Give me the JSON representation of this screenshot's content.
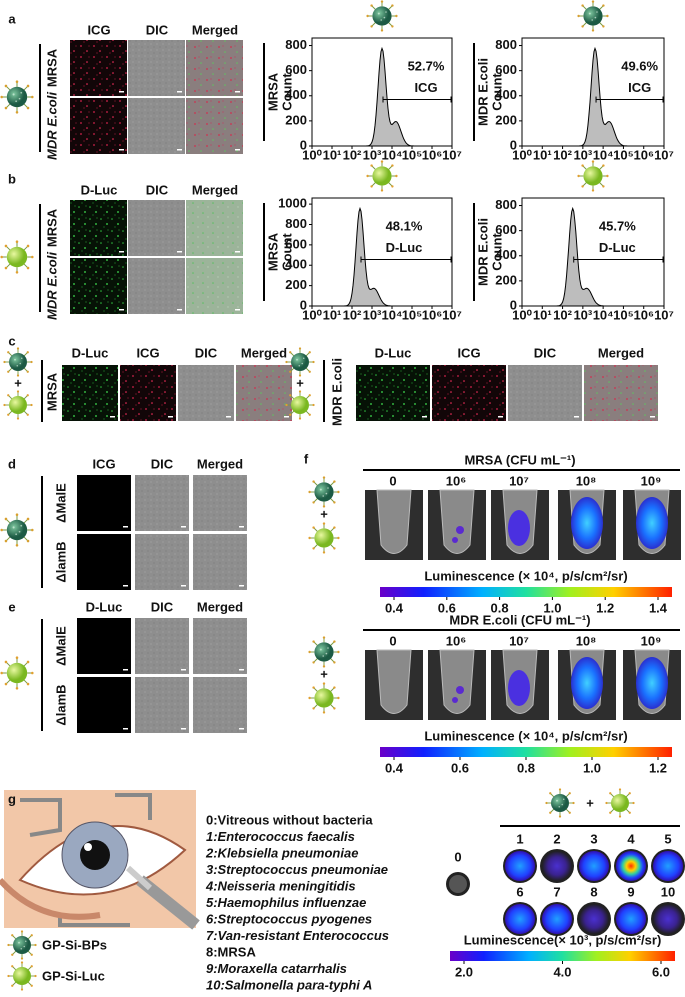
{
  "figure": {
    "a": {
      "letter": "a",
      "columns": [
        "ICG",
        "DIC",
        "Merged"
      ],
      "rows": [
        "MRSA",
        "MDR E.coli"
      ],
      "histograms": [
        {
          "label": "MRSA",
          "axis_label": "Count",
          "percent": "52.7%",
          "gate": "ICG",
          "yticks": [
            "0",
            "200",
            "400",
            "600",
            "800"
          ]
        },
        {
          "label": "MDR E.coli",
          "axis_label": "Count",
          "percent": "49.6%",
          "gate": "ICG",
          "yticks": [
            "0",
            "200",
            "400",
            "600",
            "800"
          ]
        }
      ],
      "xticks": [
        "10⁰",
        "10¹",
        "10²",
        "10³",
        "10⁴",
        "10⁵",
        "10⁶",
        "10⁷"
      ]
    },
    "b": {
      "letter": "b",
      "columns": [
        "D-Luc",
        "DIC",
        "Merged"
      ],
      "rows": [
        "MRSA",
        "MDR E.coli"
      ],
      "histograms": [
        {
          "label": "MRSA",
          "axis_label": "Count",
          "percent": "48.1%",
          "gate": "D-Luc",
          "yticks": [
            "0",
            "200",
            "400",
            "600",
            "800",
            "1000"
          ]
        },
        {
          "label": "MDR E.coli",
          "axis_label": "Count",
          "percent": "45.7%",
          "gate": "D-Luc",
          "yticks": [
            "0",
            "200",
            "400",
            "600",
            "800"
          ]
        }
      ],
      "xticks": [
        "10⁰",
        "10¹",
        "10²",
        "10³",
        "10⁴",
        "10⁵",
        "10⁶",
        "10⁷"
      ]
    },
    "c": {
      "letter": "c",
      "plus": "+",
      "groups": [
        {
          "row": "MRSA",
          "columns": [
            "D-Luc",
            "ICG",
            "DIC",
            "Merged"
          ]
        },
        {
          "row": "MDR E.coli",
          "columns": [
            "D-Luc",
            "ICG",
            "DIC",
            "Merged"
          ]
        }
      ]
    },
    "d": {
      "letter": "d",
      "columns": [
        "ICG",
        "DIC",
        "Merged"
      ],
      "rows": [
        "ΔMalE",
        "ΔlamB"
      ]
    },
    "e": {
      "letter": "e",
      "columns": [
        "D-Luc",
        "DIC",
        "Merged"
      ],
      "rows": [
        "ΔMalE",
        "ΔlamB"
      ]
    },
    "f": {
      "letter": "f",
      "plus": "+",
      "blocks": [
        {
          "title": "MRSA  (CFU mL⁻¹)",
          "concentrations": [
            "0",
            "10⁶",
            "10⁷",
            "10⁸",
            "10⁹"
          ],
          "colorbar_label": "Luminescence (× 10⁴, p/s/cm²/sr)",
          "colorbar_ticks": [
            "0.4",
            "0.6",
            "0.8",
            "1.0",
            "1.2",
            "1.4"
          ]
        },
        {
          "title": "MDR E.coli  (CFU mL⁻¹)",
          "concentrations": [
            "0",
            "10⁶",
            "10⁷",
            "10⁸",
            "10⁹"
          ],
          "colorbar_label": "Luminescence (× 10⁴, p/s/cm²/sr)",
          "colorbar_ticks": [
            "0.4",
            "0.6",
            "0.8",
            "1.0",
            "1.2"
          ]
        }
      ]
    },
    "g": {
      "letter": "g",
      "plus": "+",
      "bacteria": [
        "0:Vitreous without bacteria",
        "1:Enterococcus faecalis",
        "2:Klebsiella pneumoniae",
        "3:Streptococcus pneumoniae",
        "4:Neisseria meningitidis",
        "5:Haemophilus influenzae",
        "6:Streptococcus pyogenes",
        "7:Van-resistant Enterococcus",
        "8:MRSA",
        "9:Moraxella catarrhalis",
        "10:Salmonella para-typhi A"
      ],
      "legend": [
        "GP-Si-BPs",
        "GP-Si-Luc"
      ],
      "samples": [
        "0",
        "1",
        "2",
        "3",
        "4",
        "5",
        "6",
        "7",
        "8",
        "9",
        "10"
      ],
      "colorbar_label": "Luminescence(× 10³, p/s/cm²/sr)",
      "colorbar_ticks": [
        "2.0",
        "4.0",
        "6.0"
      ]
    }
  }
}
